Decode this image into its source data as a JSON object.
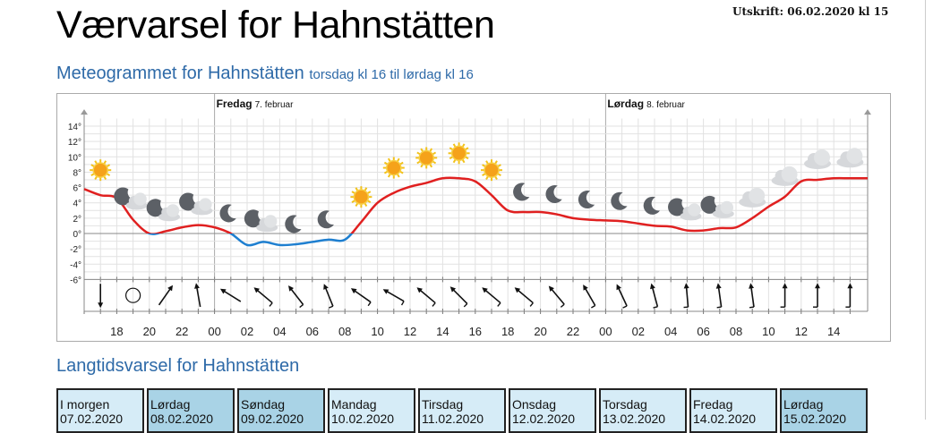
{
  "title": "Værvarsel for Hahnstätten",
  "printed": "Utskrift: 06.02.2020 kl 15",
  "meteogram": {
    "title": "Meteogrammet for Hahnstätten",
    "subtitle": "torsdag kl 16 til lørdag kl 16",
    "day_labels": [
      {
        "day": "Fredag",
        "date": "7. februar"
      },
      {
        "day": "Lørdag",
        "date": "8. februar"
      }
    ]
  },
  "chart_data": {
    "type": "line",
    "start_hour": 16,
    "y_ticks": [
      14,
      12,
      10,
      8,
      6,
      4,
      2,
      0,
      -2,
      -4,
      -6
    ],
    "ylim": [
      -6,
      15
    ],
    "x_tick_labels": [
      "18",
      "20",
      "22",
      "00",
      "02",
      "04",
      "06",
      "08",
      "10",
      "12",
      "14",
      "16",
      "18",
      "20",
      "22",
      "00",
      "02",
      "04",
      "06",
      "08",
      "10",
      "12",
      "14"
    ],
    "temperature": [
      5.8,
      5.0,
      4.6,
      1.8,
      0,
      0.3,
      0.8,
      1.1,
      0.8,
      0,
      -1.5,
      -1.1,
      -1.5,
      -1.4,
      -1.1,
      -0.8,
      -0.8,
      1.5,
      4.0,
      5.3,
      6.1,
      6.6,
      7.2,
      7.2,
      6.8,
      5.0,
      3.0,
      2.8,
      2.8,
      2.5,
      2.0,
      1.8,
      1.7,
      1.6,
      1.3,
      1.0,
      0.9,
      0.4,
      0.4,
      0.7,
      0.8,
      2.0,
      3.5,
      4.8,
      6.8,
      7.0,
      7.2,
      7.2
    ],
    "colors": {
      "warm": "#e02020",
      "cold": "#1e7fd0"
    },
    "symbols": [
      "sun",
      "moon-cloud",
      "moon-cloud",
      "moon-cloud",
      "moon",
      "moon-cloud",
      "moon",
      "moon",
      "sun",
      "sun",
      "sun",
      "sun",
      "sun",
      "moon",
      "moon",
      "moon",
      "moon",
      "moon",
      "moon-cloud",
      "moon-cloud",
      "cloud",
      "cloud",
      "cloud",
      "cloud"
    ],
    "wind_direction": [
      180,
      null,
      35,
      -10,
      -58,
      -50,
      -38,
      -22,
      -55,
      -60,
      -50,
      -45,
      -50,
      -50,
      -40,
      -30,
      -25,
      -15,
      -5,
      -8,
      -8,
      0,
      0,
      0
    ]
  },
  "longterm": {
    "title": "Langtidsvarsel for Hahnstätten",
    "days": [
      {
        "day": "I morgen",
        "date": "07.02.2020"
      },
      {
        "day": "Lørdag",
        "date": "08.02.2020"
      },
      {
        "day": "Søndag",
        "date": "09.02.2020"
      },
      {
        "day": "Mandag",
        "date": "10.02.2020"
      },
      {
        "day": "Tirsdag",
        "date": "11.02.2020"
      },
      {
        "day": "Onsdag",
        "date": "12.02.2020"
      },
      {
        "day": "Torsdag",
        "date": "13.02.2020"
      },
      {
        "day": "Fredag",
        "date": "14.02.2020"
      },
      {
        "day": "Lørdag",
        "date": "15.02.2020"
      }
    ]
  }
}
